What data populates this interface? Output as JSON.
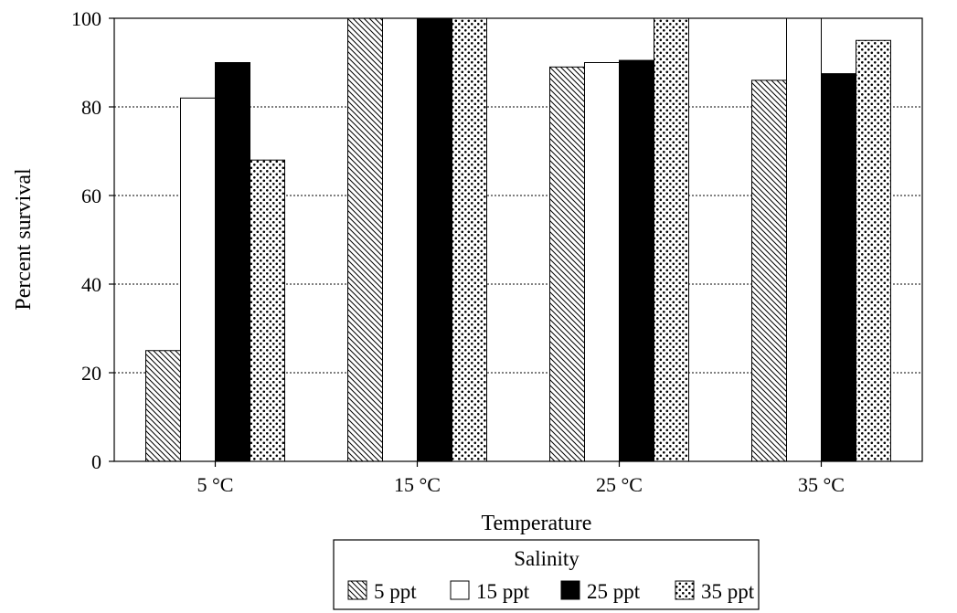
{
  "chart_data": {
    "type": "bar",
    "title": "",
    "xlabel": "Temperature",
    "ylabel": "Percent survival",
    "ylim": [
      0,
      100
    ],
    "yticks": [
      0,
      20,
      40,
      60,
      80,
      100
    ],
    "grid": "horizontal dotted",
    "categories": [
      "5 °C",
      "15 °C",
      "25 °C",
      "35 °C"
    ],
    "legend": {
      "title": "Salinity",
      "placement": "bottom-center"
    },
    "series": [
      {
        "name": "5 ppt",
        "pattern": "diagonal-hatch",
        "values": [
          25,
          100,
          89,
          86
        ]
      },
      {
        "name": "15 ppt",
        "pattern": "white",
        "values": [
          82,
          100,
          90,
          100
        ]
      },
      {
        "name": "25 ppt",
        "pattern": "black",
        "values": [
          90,
          100,
          90.5,
          87.5
        ]
      },
      {
        "name": "35 ppt",
        "pattern": "dots",
        "values": [
          68,
          100,
          100,
          95
        ]
      }
    ]
  }
}
